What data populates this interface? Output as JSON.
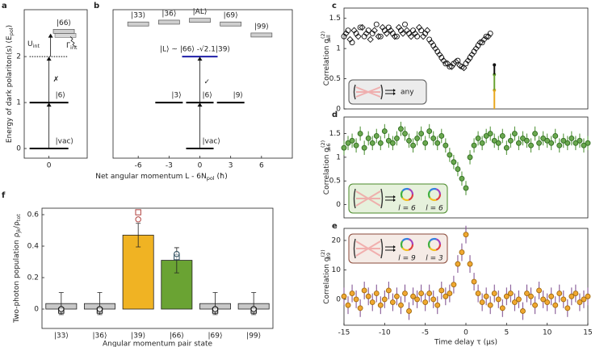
{
  "panel_labels": [
    "a",
    "b",
    "c",
    "d",
    "e",
    "f"
  ],
  "diagram": {
    "ylim": [
      -0.21,
      3.02
    ],
    "yticks": [
      0,
      1,
      2
    ],
    "y_label": {
      "parts": [
        "Energy of dark polariton(s) (E",
        "pol",
        ")"
      ],
      "styles": [
        "normal",
        "sub",
        "normal"
      ]
    },
    "x_label": {
      "parts": [
        "Net angular momentum L - 6N",
        "pol",
        " (ħ)"
      ],
      "styles": [
        "normal",
        "sub",
        "normal"
      ]
    },
    "a": {
      "xlim": [
        -1.1,
        1.7
      ],
      "xticks": [
        0
      ],
      "levels": {
        "L": [
          0,
          0,
          0
        ],
        "E": [
          0,
          1,
          2
        ],
        "labels": [
          "|vac⟩",
          "|6⟩",
          null
        ],
        "dashed": [
          false,
          false,
          true
        ]
      },
      "boxes": {
        "L": [
          0.66
        ],
        "E": [
          2.54
        ],
        "labels": [
          "|66⟩"
        ]
      },
      "interaction": {
        "parts": [
          "U",
          "int"
        ],
        "styles": [
          "normal",
          "sub"
        ]
      },
      "loss": {
        "parts": [
          "Γ",
          "int"
        ],
        "styles": [
          "normal",
          "sub"
        ]
      },
      "mark": "✗",
      "mark_color": "#d62020"
    },
    "b": {
      "xlim": [
        -8.45,
        9
      ],
      "xticks": [
        -6,
        -3,
        0,
        3,
        6
      ],
      "levels": {
        "L": [
          -3,
          0,
          3,
          0,
          0
        ],
        "E": [
          1,
          1,
          1,
          0,
          2.0
        ],
        "labels": [
          "|3⟩",
          "|6⟩",
          "|9⟩",
          "|vac⟩",
          "|L⟩ ~ |66⟩ -√2.1|39⟩"
        ],
        "colors": [
          "#000000",
          "#000000",
          "#000000",
          "#000000",
          "#1f1fa8"
        ]
      },
      "boxes": {
        "L": [
          -6,
          -3,
          0,
          3,
          6
        ],
        "E": [
          2.7,
          2.74,
          2.78,
          2.7,
          2.46
        ],
        "labels": [
          "|33⟩",
          "|36⟩",
          "|AL⟩",
          "|69⟩",
          "|99⟩"
        ]
      },
      "mark": "✓",
      "mark_color": "#3a9a2a"
    }
  },
  "chart_data": [
    {
      "type": "scatter",
      "xlim": [
        -15,
        15
      ],
      "ylim": [
        0,
        1.67
      ],
      "yticks": [
        0,
        0.5,
        1,
        1.5
      ],
      "y_label": {
        "parts": [
          "Correlation g",
          "(2)",
          "all"
        ],
        "styles": [
          "normal",
          "sup",
          "sub"
        ]
      },
      "series": [
        {
          "marker": "circle",
          "color": "#111111",
          "fill": "none",
          "x": [
            -15,
            -14.5,
            -14,
            -13.5,
            -13,
            -12.5,
            -12,
            -11.5,
            -11,
            -10.5,
            -10,
            -9.5,
            -9,
            -8.5,
            -8,
            -7.5,
            -7,
            -6.5,
            -6,
            -5.5,
            -5,
            -4.5,
            -4,
            -3.5,
            -3,
            -2.5,
            -2,
            -1.5,
            -1,
            -0.5,
            0,
            0.5,
            1,
            1.5,
            2,
            2.5,
            3
          ],
          "values": [
            1.2,
            1.3,
            1.1,
            1.25,
            1.35,
            1.2,
            1.3,
            1.25,
            1.4,
            1.2,
            1.3,
            1.35,
            1.25,
            1.2,
            1.3,
            1.4,
            1.25,
            1.3,
            1.2,
            1.3,
            1.25,
            1.15,
            1.05,
            0.95,
            0.85,
            0.75,
            0.7,
            0.75,
            0.8,
            0.7,
            0.75,
            0.85,
            0.95,
            1.05,
            1.1,
            1.2,
            1.25
          ]
        },
        {
          "marker": "diamond",
          "color": "#111111",
          "fill": "none",
          "x": [
            -14.75,
            -14.25,
            -13.75,
            -13.25,
            -12.75,
            -12.25,
            -11.75,
            -11.25,
            -10.75,
            -10.25,
            -9.75,
            -9.25,
            -8.75,
            -8.25,
            -7.75,
            -7.25,
            -6.75,
            -6.25,
            -5.75,
            -5.25,
            -4.75,
            -4.25,
            -3.75,
            -3.25,
            -2.75,
            -2.25,
            -1.75,
            -1.25,
            -0.75,
            -0.25,
            0.25,
            0.75,
            1.25,
            1.75,
            2.25,
            2.75
          ],
          "values": [
            1.25,
            1.15,
            1.3,
            1.2,
            1.35,
            1.25,
            1.15,
            1.3,
            1.2,
            1.35,
            1.25,
            1.3,
            1.2,
            1.35,
            1.25,
            1.3,
            1.2,
            1.25,
            1.35,
            1.2,
            1.3,
            1.1,
            1.0,
            0.9,
            0.8,
            0.75,
            0.7,
            0.78,
            0.72,
            0.68,
            0.8,
            0.9,
            1.0,
            1.1,
            1.15,
            1.2
          ]
        }
      ],
      "stack": {
        "x": 3.5,
        "values": [
          0.31,
          0.26,
          0.16
        ],
        "colors": [
          "#e8a820",
          "#6aa333",
          "#111111"
        ]
      },
      "inset": {
        "labels": [
          "any"
        ],
        "color": "#555555",
        "fill": "#ececec"
      }
    },
    {
      "type": "scatter",
      "xlim": [
        -15,
        15
      ],
      "ylim": [
        -0.28,
        1.85
      ],
      "yticks": [
        0,
        0.5,
        1,
        1.5
      ],
      "y_label": {
        "parts": [
          "Correlation g",
          "(2)",
          "66"
        ],
        "styles": [
          "normal",
          "sup",
          "sub"
        ]
      },
      "series": [
        {
          "marker": "circle",
          "color": "#2f6b1f",
          "fill": "#6aa84f",
          "error": 0.15,
          "error_color": "#4a8f30",
          "x": [
            -15,
            -14.5,
            -14,
            -13.5,
            -13,
            -12.5,
            -12,
            -11.5,
            -11,
            -10.5,
            -10,
            -9.5,
            -9,
            -8.5,
            -8,
            -7.5,
            -7,
            -6.5,
            -6,
            -5.5,
            -5,
            -4.5,
            -4,
            -3.5,
            -3,
            -2.5,
            -2,
            -1.5,
            -1,
            -0.5,
            0,
            0.5,
            1,
            1.5,
            2,
            2.5,
            3,
            3.5,
            4,
            4.5,
            5,
            5.5,
            6,
            6.5,
            7,
            7.5,
            8,
            8.5,
            9,
            9.5,
            10,
            10.5,
            11,
            11.5,
            12,
            12.5,
            13,
            13.5,
            14,
            14.5,
            15
          ],
          "values": [
            1.2,
            1.3,
            1.35,
            1.25,
            1.5,
            1.2,
            1.4,
            1.3,
            1.45,
            1.3,
            1.55,
            1.35,
            1.3,
            1.4,
            1.6,
            1.5,
            1.35,
            1.25,
            1.4,
            1.5,
            1.3,
            1.55,
            1.4,
            1.3,
            1.45,
            1.25,
            1.05,
            0.9,
            0.75,
            0.55,
            0.35,
            1.0,
            1.25,
            1.4,
            1.3,
            1.45,
            1.5,
            1.35,
            1.3,
            1.45,
            1.2,
            1.35,
            1.5,
            1.3,
            1.4,
            1.35,
            1.25,
            1.5,
            1.3,
            1.4,
            1.35,
            1.3,
            1.45,
            1.25,
            1.35,
            1.3,
            1.4,
            1.3,
            1.35,
            1.25,
            1.3
          ]
        }
      ],
      "inset": {
        "labels": [
          "l = 6",
          "l = 6"
        ],
        "color": "#4a8a2a",
        "fill": "#e6f1dc"
      }
    },
    {
      "type": "scatter",
      "xlim": [
        -15,
        15
      ],
      "ylim": [
        -8.8,
        24.1
      ],
      "yticks": [
        0,
        10,
        20
      ],
      "xticks": [
        -15,
        -10,
        -5,
        0,
        5,
        10,
        15
      ],
      "x_label": "Time delay τ (μs)",
      "y_label": {
        "parts": [
          "Correlation g",
          "(2)",
          "39"
        ],
        "styles": [
          "normal",
          "sup",
          "sub"
        ]
      },
      "series": [
        {
          "marker": "circle",
          "color": "#a06a10",
          "fill": "#f0a830",
          "error": 3,
          "error_color": "#7b4a8c",
          "x": [
            -15,
            -14.5,
            -14,
            -13.5,
            -13,
            -12.5,
            -12,
            -11.5,
            -11,
            -10.5,
            -10,
            -9.5,
            -9,
            -8.5,
            -8,
            -7.5,
            -7,
            -6.5,
            -6,
            -5.5,
            -5,
            -4.5,
            -4,
            -3.5,
            -3,
            -2.5,
            -2,
            -1.5,
            -1,
            -0.5,
            0,
            0.5,
            1,
            1.5,
            2,
            2.5,
            3,
            3.5,
            4,
            4.5,
            5,
            5.5,
            6,
            6.5,
            7,
            7.5,
            8,
            8.5,
            9,
            9.5,
            10,
            10.5,
            11,
            11.5,
            12,
            12.5,
            13,
            13.5,
            14,
            14.5,
            15
          ],
          "values": [
            1,
            -2,
            2,
            0,
            -3,
            3,
            1,
            -1,
            2,
            -2,
            0,
            3,
            -1,
            1,
            -2,
            2,
            -4,
            1,
            0,
            2,
            -1,
            2,
            0,
            -2,
            3,
            1,
            2,
            5,
            12,
            16,
            22,
            12,
            6,
            2,
            -1,
            1,
            -2,
            2,
            0,
            -3,
            1,
            2,
            -1,
            0,
            -4,
            2,
            1,
            -2,
            3,
            0,
            -1,
            1,
            -2,
            2,
            0,
            -3,
            1,
            2,
            -1,
            0,
            1
          ]
        }
      ],
      "inset": {
        "labels": [
          "l = 9",
          "l = 3"
        ],
        "color": "#8a4a3a",
        "fill": "#f5ebe6"
      }
    },
    {
      "type": "bar",
      "ylim": [
        -0.123,
        0.641
      ],
      "yticks": [
        0,
        0.2,
        0.4,
        0.6
      ],
      "x_label": "Angular momentum pair state",
      "y_label": {
        "parts": [
          "Two-photon population ρ",
          "jk",
          "/ρ",
          "tot"
        ],
        "styles": [
          "normal",
          "sub",
          "normal",
          "sub"
        ]
      },
      "categories": [
        "|33⟩",
        "|36⟩",
        "|39⟩",
        "|66⟩",
        "|69⟩",
        "|99⟩"
      ],
      "values": [
        0.035,
        0.035,
        0.47,
        0.31,
        0.035,
        0.035
      ],
      "errors": [
        0.07,
        0.07,
        0.075,
        0.08,
        0.07,
        0.07
      ],
      "colors": [
        "#c8c8c8",
        "#c8c8c8",
        "#f0b323",
        "#6aa333",
        "#c8c8c8",
        "#c8c8c8"
      ],
      "markers": [
        {
          "marker": "square",
          "values": [
            -0.01,
            -0.01,
            0.615,
            0.33,
            -0.01,
            -0.01
          ],
          "colors": [
            "#111111",
            "#111111",
            "#b0413e",
            "#2a4a5a",
            "#111111",
            "#111111"
          ]
        },
        {
          "marker": "circle",
          "values": [
            0.0,
            0.0,
            0.57,
            0.35,
            0.0,
            0.0
          ],
          "colors": [
            "#111111",
            "#111111",
            "#b0413e",
            "#2a4a5a",
            "#111111",
            "#111111"
          ]
        }
      ]
    }
  ]
}
